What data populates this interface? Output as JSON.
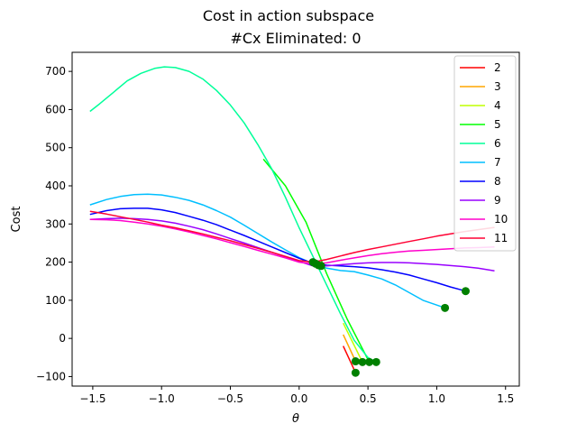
{
  "figure": {
    "suptitle": "Cost in action subspace"
  },
  "chart_data": {
    "type": "line",
    "title": "#Cx Eliminated: 0",
    "xlabel": "θ",
    "ylabel": "Cost",
    "xlim": [
      -1.65,
      1.6
    ],
    "ylim": [
      -125,
      750
    ],
    "xticks": [
      -1.5,
      -1.0,
      -0.5,
      0.0,
      0.5,
      1.0,
      1.5
    ],
    "xtick_labels": [
      "−1.5",
      "−1.0",
      "−0.5",
      "0.0",
      "0.5",
      "1.0",
      "1.5"
    ],
    "yticks": [
      -100,
      0,
      100,
      200,
      300,
      400,
      500,
      600,
      700
    ],
    "ytick_labels": [
      "−100",
      "0",
      "100",
      "200",
      "300",
      "400",
      "500",
      "600",
      "700"
    ],
    "grid": false,
    "legend_position": "top-right",
    "series": [
      {
        "name": "2",
        "color": "#ff0000",
        "x": [
          0.32,
          0.41
        ],
        "y": [
          -20,
          -90
        ],
        "marker": {
          "x": 0.41,
          "y": -90
        }
      },
      {
        "name": "3",
        "color": "#ffa500",
        "x": [
          0.32,
          0.41
        ],
        "y": [
          10,
          -60
        ],
        "marker": {
          "x": 0.41,
          "y": -60
        }
      },
      {
        "name": "4",
        "color": "#bfff00",
        "x": [
          0.32,
          0.46
        ],
        "y": [
          40,
          -62
        ],
        "marker": {
          "x": 0.46,
          "y": -62
        }
      },
      {
        "name": "5",
        "color": "#00ff00",
        "x": [
          -0.26,
          -0.1,
          0.05,
          0.2,
          0.35,
          0.51
        ],
        "y": [
          470,
          400,
          305,
          170,
          50,
          -62
        ],
        "marker": {
          "x": 0.51,
          "y": -62
        }
      },
      {
        "name": "6",
        "color": "#00ff99",
        "x": [
          -1.52,
          -1.45,
          -1.35,
          -1.25,
          -1.15,
          -1.05,
          -0.98,
          -0.9,
          -0.8,
          -0.7,
          -0.6,
          -0.5,
          -0.4,
          -0.3,
          -0.2,
          -0.1,
          0.0,
          0.1,
          0.2,
          0.3,
          0.4,
          0.5,
          0.56
        ],
        "y": [
          595,
          615,
          645,
          675,
          695,
          708,
          712,
          710,
          700,
          680,
          650,
          612,
          565,
          508,
          445,
          370,
          290,
          215,
          140,
          65,
          -5,
          -50,
          -62
        ],
        "marker": {
          "x": 0.56,
          "y": -62
        }
      },
      {
        "name": "7",
        "color": "#00bfff",
        "x": [
          -1.52,
          -1.4,
          -1.3,
          -1.2,
          -1.1,
          -1.0,
          -0.9,
          -0.8,
          -0.7,
          -0.6,
          -0.5,
          -0.4,
          -0.3,
          -0.2,
          -0.1,
          0.0,
          0.1,
          0.2,
          0.3,
          0.4,
          0.5,
          0.6,
          0.7,
          0.8,
          0.9,
          1.06
        ],
        "y": [
          350,
          364,
          372,
          377,
          378,
          376,
          370,
          362,
          350,
          335,
          318,
          297,
          275,
          253,
          232,
          212,
          196,
          184,
          178,
          175,
          166,
          156,
          140,
          120,
          100,
          80
        ],
        "marker": {
          "x": 1.06,
          "y": 80
        }
      },
      {
        "name": "8",
        "color": "#0000ff",
        "x": [
          -1.52,
          -1.4,
          -1.3,
          -1.2,
          -1.1,
          -1.0,
          -0.9,
          -0.8,
          -0.7,
          -0.6,
          -0.5,
          -0.4,
          -0.3,
          -0.2,
          -0.1,
          0.0,
          0.1,
          0.2,
          0.3,
          0.4,
          0.5,
          0.6,
          0.7,
          0.8,
          0.9,
          1.0,
          1.1,
          1.21
        ],
        "y": [
          325,
          335,
          340,
          341,
          341,
          337,
          330,
          320,
          310,
          298,
          284,
          270,
          255,
          240,
          225,
          210,
          197,
          192,
          190,
          188,
          185,
          180,
          174,
          166,
          156,
          146,
          135,
          124
        ],
        "marker": {
          "x": 1.21,
          "y": 124
        }
      },
      {
        "name": "9",
        "color": "#9900ff",
        "x": [
          -1.52,
          -1.4,
          -1.3,
          -1.2,
          -1.1,
          -1.0,
          -0.9,
          -0.8,
          -0.7,
          -0.6,
          -0.5,
          -0.4,
          -0.3,
          -0.2,
          -0.1,
          0.0,
          0.1,
          0.2,
          0.3,
          0.4,
          0.5,
          0.6,
          0.7,
          0.8,
          0.9,
          1.0,
          1.1,
          1.2,
          1.3,
          1.42
        ],
        "y": [
          312,
          314,
          315,
          314,
          312,
          308,
          302,
          294,
          285,
          274,
          262,
          250,
          238,
          226,
          214,
          202,
          190,
          190,
          193,
          196,
          198,
          199,
          199,
          198,
          196,
          194,
          191,
          188,
          184,
          177
        ],
        "marker": null
      },
      {
        "name": "10",
        "color": "#ff00cc",
        "x": [
          -1.52,
          -1.4,
          -1.3,
          -1.2,
          -1.1,
          -1.0,
          -0.9,
          -0.8,
          -0.7,
          -0.6,
          -0.5,
          -0.4,
          -0.3,
          -0.2,
          -0.1,
          0.0,
          0.1,
          0.2,
          0.3,
          0.4,
          0.5,
          0.6,
          0.7,
          0.8,
          0.9,
          1.0,
          1.1,
          1.2,
          1.3,
          1.42
        ],
        "y": [
          312,
          311,
          309,
          305,
          300,
          294,
          287,
          279,
          270,
          261,
          251,
          241,
          231,
          221,
          211,
          200,
          195,
          198,
          205,
          211,
          217,
          222,
          226,
          229,
          231,
          233,
          235,
          237,
          238,
          240
        ],
        "marker": null
      },
      {
        "name": "11",
        "color": "#ff0033",
        "x": [
          -1.52,
          -1.4,
          -1.3,
          -1.2,
          -1.1,
          -1.0,
          -0.9,
          -0.8,
          -0.7,
          -0.6,
          -0.5,
          -0.4,
          -0.3,
          -0.2,
          -0.1,
          0.0,
          0.1,
          0.2,
          0.3,
          0.4,
          0.5,
          0.6,
          0.7,
          0.8,
          0.9,
          1.0,
          1.1,
          1.2,
          1.3,
          1.42
        ],
        "y": [
          333,
          326,
          319,
          312,
          305,
          297,
          290,
          282,
          274,
          265,
          256,
          246,
          236,
          226,
          215,
          204,
          200,
          207,
          216,
          225,
          233,
          240,
          247,
          254,
          261,
          268,
          274,
          280,
          285,
          291
        ],
        "marker": null
      }
    ],
    "center_markers": [
      {
        "x": 0.1,
        "y": 200
      },
      {
        "x": 0.12,
        "y": 196
      },
      {
        "x": 0.14,
        "y": 192
      },
      {
        "x": 0.16,
        "y": 190
      }
    ],
    "marker_color": "#008000"
  }
}
